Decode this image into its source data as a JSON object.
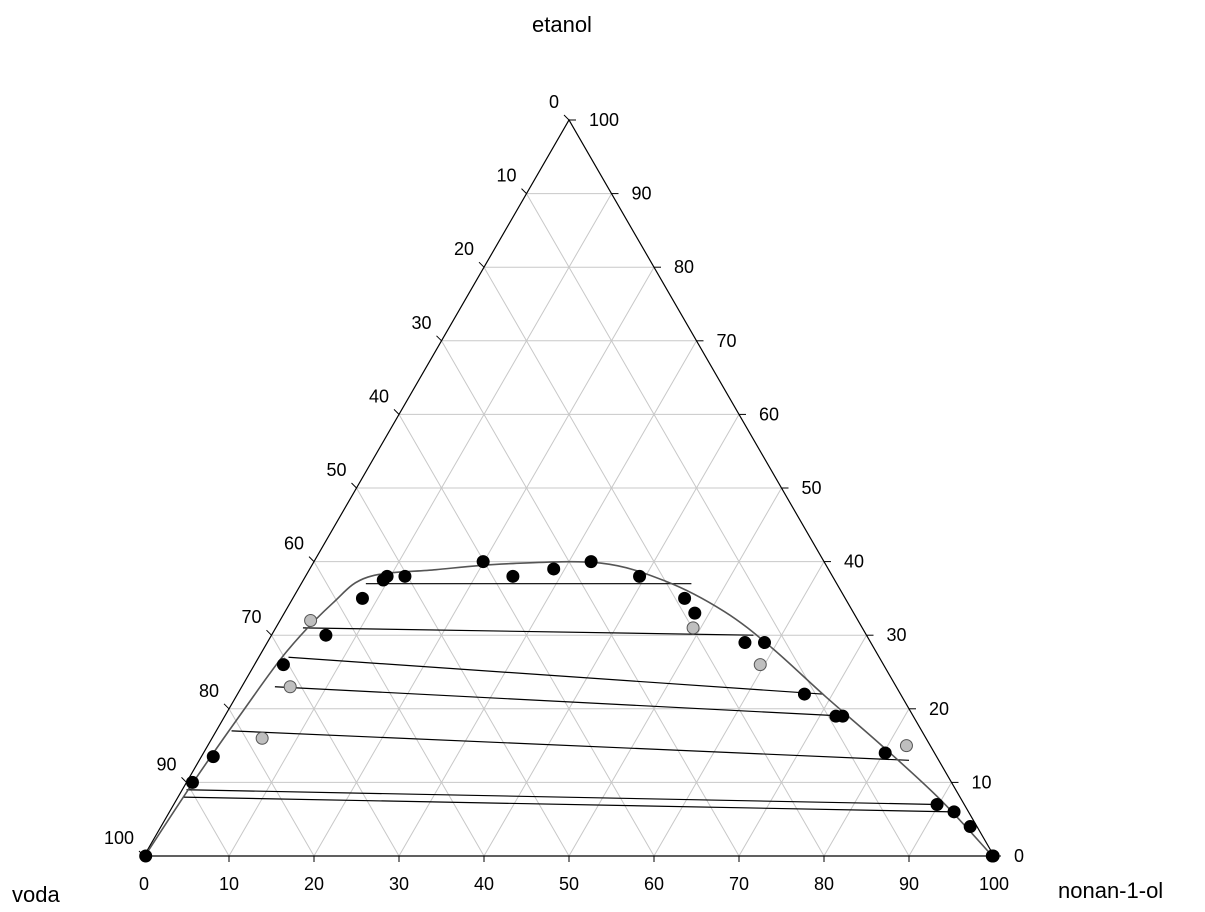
{
  "chart_data": {
    "type": "scatter",
    "subtype": "ternary",
    "components": {
      "top": "etanol",
      "left": "voda",
      "right": "nonan-1-ol"
    },
    "axis_ticks": [
      "0",
      "10",
      "20",
      "30",
      "40",
      "50",
      "60",
      "70",
      "80",
      "90",
      "100"
    ],
    "grid": true,
    "series": [
      {
        "marker": "filled-black-circle",
        "points": [
          {
            "voda": 99.8,
            "nonan-1-ol": 0.2,
            "etanol": 0
          },
          {
            "voda": 89.3,
            "nonan-1-ol": 0.7,
            "etanol": 10
          },
          {
            "voda": 85.1,
            "nonan-1-ol": 1.4,
            "etanol": 13.5
          },
          {
            "voda": 70.6,
            "nonan-1-ol": 3.4,
            "etanol": 26
          },
          {
            "voda": 63.6,
            "nonan-1-ol": 6.4,
            "etanol": 30
          },
          {
            "voda": 56.8,
            "nonan-1-ol": 8.2,
            "etanol": 35
          },
          {
            "voda": 53.1,
            "nonan-1-ol": 9.4,
            "etanol": 37.5
          },
          {
            "voda": 52.4,
            "nonan-1-ol": 9.6,
            "etanol": 38
          },
          {
            "voda": 50.3,
            "nonan-1-ol": 11.7,
            "etanol": 38
          },
          {
            "voda": 40.1,
            "nonan-1-ol": 19.9,
            "etanol": 40
          },
          {
            "voda": 37.6,
            "nonan-1-ol": 24.4,
            "etanol": 38
          },
          {
            "voda": 32.3,
            "nonan-1-ol": 28.7,
            "etanol": 39
          },
          {
            "voda": 27.4,
            "nonan-1-ol": 32.6,
            "etanol": 40
          },
          {
            "voda": 22.7,
            "nonan-1-ol": 39.3,
            "etanol": 38
          },
          {
            "voda": 18.9,
            "nonan-1-ol": 46.1,
            "etanol": 35
          },
          {
            "voda": 18.7,
            "nonan-1-ol": 48.3,
            "etanol": 33
          },
          {
            "voda": 14.8,
            "nonan-1-ol": 56.2,
            "etanol": 29
          },
          {
            "voda": 12.5,
            "nonan-1-ol": 58.5,
            "etanol": 29
          },
          {
            "voda": 11.3,
            "nonan-1-ol": 66.7,
            "etanol": 22
          },
          {
            "voda": 9.1,
            "nonan-1-ol": 71.9,
            "etanol": 19
          },
          {
            "voda": 8.3,
            "nonan-1-ol": 72.7,
            "etanol": 19
          },
          {
            "voda": 5.8,
            "nonan-1-ol": 80.2,
            "etanol": 14
          },
          {
            "voda": 3.2,
            "nonan-1-ol": 89.8,
            "etanol": 7
          },
          {
            "voda": 1.7,
            "nonan-1-ol": 92.3,
            "etanol": 6
          },
          {
            "voda": 0.8,
            "nonan-1-ol": 95.2,
            "etanol": 4
          },
          {
            "voda": 0.2,
            "nonan-1-ol": 99.8,
            "etanol": 0
          },
          {
            "voda": 0.1,
            "nonan-1-ol": 99.9,
            "etanol": 0
          }
        ]
      },
      {
        "marker": "open-grey-circle",
        "points": [
          {
            "voda": 64.4,
            "nonan-1-ol": 3.6,
            "etanol": 32
          },
          {
            "voda": 71.3,
            "nonan-1-ol": 5.7,
            "etanol": 23
          },
          {
            "voda": 78.1,
            "nonan-1-ol": 5.9,
            "etanol": 16
          },
          {
            "voda": 19.9,
            "nonan-1-ol": 49.1,
            "etanol": 31
          },
          {
            "voda": 14.5,
            "nonan-1-ol": 59.5,
            "etanol": 26
          },
          {
            "voda": 2.8,
            "nonan-1-ol": 82.2,
            "etanol": 15
          }
        ]
      }
    ],
    "binodal_curve": [
      {
        "voda": 99.9,
        "nonan-1-ol": 0.1,
        "etanol": 0
      },
      {
        "voda": 89.0,
        "nonan-1-ol": 0.8,
        "etanol": 10.2
      },
      {
        "voda": 78.5,
        "nonan-1-ol": 1.8,
        "etanol": 19.7
      },
      {
        "voda": 69.3,
        "nonan-1-ol": 2.9,
        "etanol": 27.8
      },
      {
        "voda": 60.7,
        "nonan-1-ol": 5.0,
        "etanol": 34.3
      },
      {
        "voda": 54.7,
        "nonan-1-ol": 7.4,
        "etanol": 37.9
      },
      {
        "voda": 46.2,
        "nonan-1-ol": 14.9,
        "etanol": 38.9
      },
      {
        "voda": 37.5,
        "nonan-1-ol": 22.8,
        "etanol": 39.7
      },
      {
        "voda": 26.4,
        "nonan-1-ol": 33.8,
        "etanol": 39.8
      },
      {
        "voda": 19.9,
        "nonan-1-ol": 42.8,
        "etanol": 37.3
      },
      {
        "voda": 15.1,
        "nonan-1-ol": 51.7,
        "etanol": 33.2
      },
      {
        "voda": 12.0,
        "nonan-1-ol": 59.7,
        "etanol": 28.3
      },
      {
        "voda": 9.0,
        "nonan-1-ol": 69.3,
        "etanol": 21.7
      },
      {
        "voda": 5.7,
        "nonan-1-ol": 79.3,
        "etanol": 15.0
      },
      {
        "voda": 2.5,
        "nonan-1-ol": 89.8,
        "etanol": 7.7
      },
      {
        "voda": 0.2,
        "nonan-1-ol": 99.8,
        "etanol": 0
      }
    ],
    "tie_lines": [
      [
        {
          "voda": 55.4,
          "nonan-1-ol": 7.6,
          "etanol": 37.0
        },
        {
          "voda": 17.1,
          "nonan-1-ol": 45.9,
          "etanol": 37.0
        }
      ],
      [
        {
          "voda": 65.8,
          "nonan-1-ol": 3.2,
          "etanol": 31.0
        },
        {
          "voda": 13.3,
          "nonan-1-ol": 56.7,
          "etanol": 30.0
        }
      ],
      [
        {
          "voda": 69.5,
          "nonan-1-ol": 3.5,
          "etanol": 27.0
        },
        {
          "voda": 9.2,
          "nonan-1-ol": 68.8,
          "etanol": 22.0
        }
      ],
      [
        {
          "voda": 73.1,
          "nonan-1-ol": 3.9,
          "etanol": 23.0
        },
        {
          "voda": 8.0,
          "nonan-1-ol": 73.0,
          "etanol": 19.0
        }
      ],
      [
        {
          "voda": 81.2,
          "nonan-1-ol": 1.8,
          "etanol": 17.0
        },
        {
          "voda": 3.5,
          "nonan-1-ol": 83.5,
          "etanol": 13.0
        }
      ],
      [
        {
          "voda": 90.5,
          "nonan-1-ol": 0.5,
          "etanol": 9.0
        },
        {
          "voda": 3.2,
          "nonan-1-ol": 89.8,
          "etanol": 7.0
        }
      ],
      [
        {
          "voda": 91.4,
          "nonan-1-ol": 0.6,
          "etanol": 8.0
        },
        {
          "voda": 1.8,
          "nonan-1-ol": 92.2,
          "etanol": 6.0
        }
      ]
    ]
  }
}
